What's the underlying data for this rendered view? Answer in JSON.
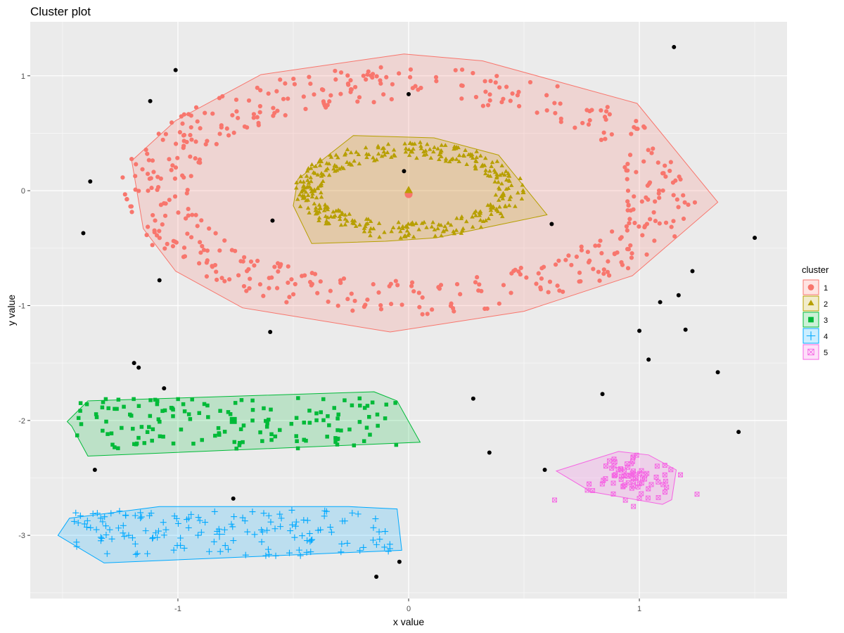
{
  "chart_data": {
    "type": "scatter",
    "title": "Cluster plot",
    "xlabel": "x value",
    "ylabel": "y value",
    "xlim": [
      -1.64,
      1.64
    ],
    "ylim": [
      -3.55,
      1.47
    ],
    "xticks": [
      -1,
      0,
      1
    ],
    "yticks": [
      1,
      0,
      -1,
      -2,
      -3
    ],
    "tick_labels_x": [
      "-1",
      "0",
      "1"
    ],
    "tick_labels_y": [
      "1",
      "0",
      "-1",
      "-2",
      "-3"
    ],
    "grid": true,
    "panel_background": "#ebebeb",
    "legend": {
      "title": "cluster",
      "position": "right",
      "labels": [
        "1",
        "2",
        "3",
        "4",
        "5"
      ]
    },
    "noise_color": "#000000",
    "series": [
      {
        "name": "1",
        "color": "#f8766d",
        "shape": "circle",
        "structure": {
          "kind": "ring",
          "cx": 0,
          "cy": 0,
          "rx_in": 0.95,
          "ry_in": 0.78,
          "rx_out": 1.25,
          "ry_out": 1.08,
          "n": 500
        },
        "center": [
          0,
          -0.03
        ],
        "hull": [
          [
            -0.02,
            1.19
          ],
          [
            0.32,
            1.13
          ],
          [
            0.99,
            0.76
          ],
          [
            1.34,
            -0.1
          ],
          [
            0.97,
            -0.74
          ],
          [
            0.5,
            -1.05
          ],
          [
            -0.08,
            -1.23
          ],
          [
            -0.72,
            -1.02
          ],
          [
            -1.01,
            -0.7
          ],
          [
            -1.15,
            -0.33
          ],
          [
            -1.2,
            0.26
          ],
          [
            -1.01,
            0.61
          ],
          [
            -0.64,
            1.01
          ]
        ]
      },
      {
        "name": "2",
        "color": "#b79f00",
        "shape": "triangle",
        "structure": {
          "kind": "ring",
          "cx": 0,
          "cy": 0,
          "rx_in": 0.38,
          "ry_in": 0.28,
          "rx_out": 0.5,
          "ry_out": 0.42,
          "n": 380
        },
        "center": [
          0,
          0
        ],
        "hull": [
          [
            -0.24,
            0.48
          ],
          [
            0.11,
            0.46
          ],
          [
            0.39,
            0.31
          ],
          [
            0.6,
            -0.21
          ],
          [
            0.12,
            -0.41
          ],
          [
            -0.1,
            -0.44
          ],
          [
            -0.42,
            -0.46
          ],
          [
            -0.5,
            -0.13
          ],
          [
            -0.48,
            0.1
          ]
        ]
      },
      {
        "name": "3",
        "color": "#00ba38",
        "shape": "square",
        "structure": {
          "kind": "band",
          "x0": -1.45,
          "x1": -0.05,
          "ymin": -2.25,
          "ymax": -1.8,
          "n": 150
        },
        "center": [
          -0.76,
          -2.0
        ],
        "hull": [
          [
            -0.15,
            -1.75
          ],
          [
            -0.05,
            -1.83
          ],
          [
            0.05,
            -2.19
          ],
          [
            -1.39,
            -2.31
          ],
          [
            -1.46,
            -2.05
          ],
          [
            -1.48,
            -2.01
          ],
          [
            -1.39,
            -1.83
          ]
        ]
      },
      {
        "name": "4",
        "color": "#00a9ff",
        "shape": "plus",
        "structure": {
          "kind": "band",
          "x0": -1.45,
          "x1": -0.05,
          "ymin": -3.18,
          "ymax": -2.78,
          "n": 150
        },
        "center": [
          -0.82,
          -2.99
        ],
        "hull": [
          [
            -0.05,
            -2.77
          ],
          [
            -0.03,
            -3.13
          ],
          [
            -1.32,
            -3.24
          ],
          [
            -1.52,
            -3.0
          ],
          [
            -1.47,
            -2.85
          ],
          [
            -1.08,
            -2.75
          ],
          [
            -0.26,
            -2.75
          ]
        ]
      },
      {
        "name": "5",
        "color": "#f564e3",
        "shape": "square-cross",
        "structure": {
          "kind": "blob",
          "cx": 0.98,
          "cy": -2.5,
          "sx": 0.09,
          "sy": 0.09,
          "n": 75
        },
        "center": [
          0.98,
          -2.49
        ],
        "hull": [
          [
            0.91,
            -2.27
          ],
          [
            1.04,
            -2.3
          ],
          [
            1.16,
            -2.43
          ],
          [
            1.14,
            -2.69
          ],
          [
            1.1,
            -2.73
          ],
          [
            0.79,
            -2.62
          ],
          [
            0.64,
            -2.44
          ]
        ]
      }
    ],
    "noise_points": [
      [
        -1.01,
        1.05
      ],
      [
        1.15,
        1.25
      ],
      [
        -1.12,
        0.78
      ],
      [
        0.0,
        0.84
      ],
      [
        -1.38,
        0.08
      ],
      [
        -0.02,
        0.17
      ],
      [
        -0.59,
        -0.26
      ],
      [
        0.62,
        -0.29
      ],
      [
        -1.41,
        -0.37
      ],
      [
        1.5,
        -0.41
      ],
      [
        -1.08,
        -0.78
      ],
      [
        1.23,
        -0.7
      ],
      [
        1.17,
        -0.91
      ],
      [
        1.09,
        -0.97
      ],
      [
        -0.6,
        -1.23
      ],
      [
        1.0,
        -1.22
      ],
      [
        1.2,
        -1.21
      ],
      [
        1.04,
        -1.47
      ],
      [
        -1.19,
        -1.5
      ],
      [
        -1.17,
        -1.54
      ],
      [
        -1.06,
        -1.72
      ],
      [
        1.34,
        -1.58
      ],
      [
        0.84,
        -1.77
      ],
      [
        0.28,
        -1.81
      ],
      [
        1.43,
        -2.1
      ],
      [
        0.35,
        -2.28
      ],
      [
        -1.36,
        -2.43
      ],
      [
        0.59,
        -2.43
      ],
      [
        -0.76,
        -2.68
      ],
      [
        -0.04,
        -3.23
      ],
      [
        -0.14,
        -3.36
      ]
    ]
  }
}
